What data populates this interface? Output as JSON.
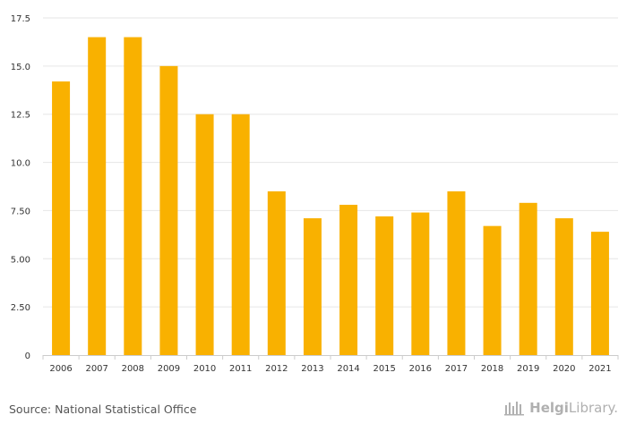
{
  "chart_data": {
    "type": "bar",
    "categories": [
      "2006",
      "2007",
      "2008",
      "2009",
      "2010",
      "2011",
      "2012",
      "2013",
      "2014",
      "2015",
      "2016",
      "2017",
      "2018",
      "2019",
      "2020",
      "2021"
    ],
    "values": [
      14.2,
      16.5,
      16.5,
      15.0,
      12.5,
      12.5,
      8.5,
      7.1,
      7.8,
      7.2,
      7.4,
      8.5,
      6.7,
      7.9,
      7.1,
      6.4
    ],
    "title": "",
    "xlabel": "",
    "ylabel": "",
    "ylim": [
      0,
      17.5
    ],
    "yticks": [
      "0",
      "2.50",
      "5.00",
      "7.50",
      "10.0",
      "12.5",
      "15.0",
      "17.5"
    ],
    "grid": true,
    "bar_color": "#f9b100",
    "grid_color": "#e6e6e6"
  },
  "footer": {
    "source": "Source: National Statistical Office",
    "brand_part1": "Helgi",
    "brand_part2": "Library."
  },
  "icons": {
    "brand": "library-logo-icon"
  }
}
